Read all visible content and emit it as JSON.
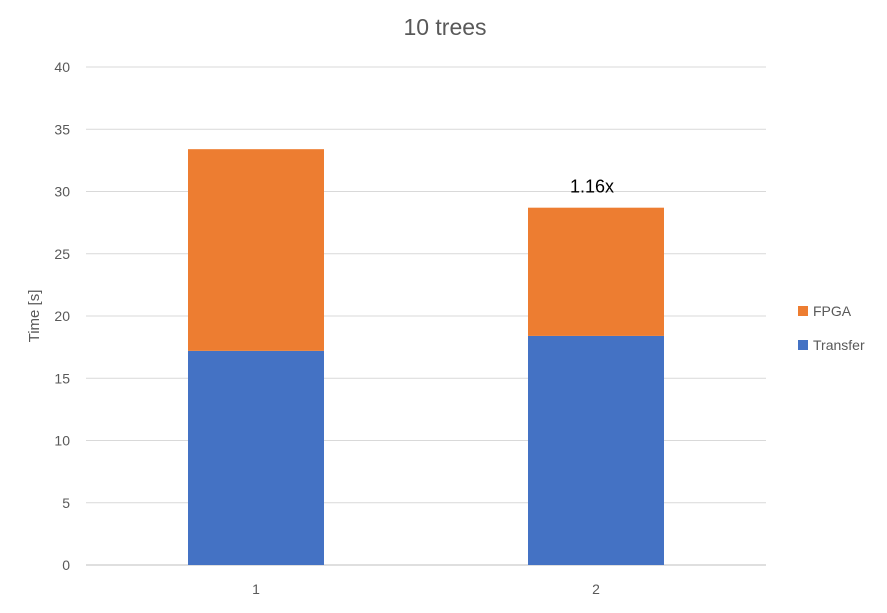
{
  "chart_data": {
    "type": "bar",
    "stacked": true,
    "title": "10 trees",
    "xlabel": "",
    "ylabel": "Time [s]",
    "categories": [
      "1",
      "2"
    ],
    "series": [
      {
        "name": "Transfer",
        "color": "#4472C4",
        "values": [
          17.2,
          18.4
        ]
      },
      {
        "name": "FPGA",
        "color": "#ED7D31",
        "values": [
          16.2,
          10.3
        ]
      }
    ],
    "yticks": [
      "0",
      "5",
      "10",
      "15",
      "20",
      "25",
      "30",
      "35",
      "40"
    ],
    "ylim": [
      0,
      40
    ],
    "grid": true,
    "legend_position": "right",
    "annotations": [
      {
        "category_index": 1,
        "text": "1.16x"
      }
    ]
  }
}
